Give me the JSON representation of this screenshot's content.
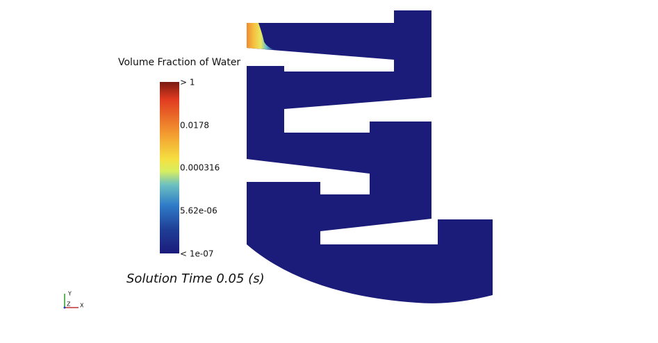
{
  "legend": {
    "title": "Volume Fraction of Water",
    "labels": [
      "> 1",
      "0.0178",
      "0.000316",
      "5.62e-06",
      "< 1e-07"
    ]
  },
  "annotation": "Solution Time 0.05 (s)",
  "triad": {
    "y": "Y",
    "z": "Z",
    "x": "X"
  }
}
